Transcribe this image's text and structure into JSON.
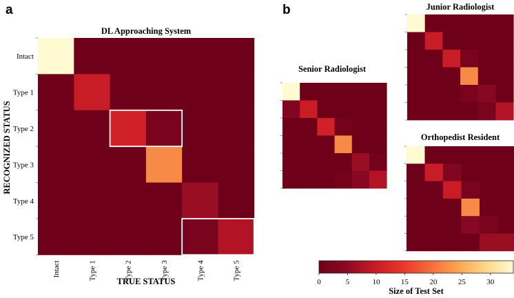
{
  "panel_labels": {
    "a": "a",
    "b": "b"
  },
  "chart_data": [
    {
      "type": "heatmap",
      "id": "dl",
      "title": "DL Approaching System",
      "xlabel": "TRUE STATUS",
      "ylabel": "RECOGNIZED STATUS",
      "x_categories": [
        "Intact",
        "Type 1",
        "Type 2",
        "Type 3",
        "Type 4",
        "Type 5"
      ],
      "y_categories": [
        "Intact",
        "Type 1",
        "Type 2",
        "Type 3",
        "Type 4",
        "Type 5"
      ],
      "values": [
        [
          34,
          0,
          0,
          0,
          0,
          0
        ],
        [
          0,
          10,
          0,
          0,
          0,
          0
        ],
        [
          0,
          0,
          11,
          2,
          0,
          0
        ],
        [
          0,
          0,
          0,
          22,
          0,
          0
        ],
        [
          0,
          0,
          0,
          0,
          6,
          0
        ],
        [
          0,
          0,
          0,
          0,
          2,
          8
        ]
      ],
      "highlight_boxes": [
        {
          "rows": [
            2,
            2
          ],
          "cols": [
            2,
            3
          ]
        },
        {
          "rows": [
            5,
            5
          ],
          "cols": [
            4,
            5
          ]
        }
      ]
    },
    {
      "type": "heatmap",
      "id": "junior",
      "title": "Junior Radiologist",
      "values": [
        [
          34,
          0,
          0,
          0,
          0,
          0
        ],
        [
          0,
          10,
          0,
          0,
          0,
          0
        ],
        [
          0,
          0,
          10,
          2,
          0,
          0
        ],
        [
          0,
          0,
          0,
          22,
          0,
          0
        ],
        [
          0,
          0,
          0,
          2,
          4,
          0
        ],
        [
          0,
          0,
          0,
          0,
          2,
          8
        ]
      ]
    },
    {
      "type": "heatmap",
      "id": "senior",
      "title": "Senior Radiologist",
      "values": [
        [
          34,
          0,
          0,
          0,
          0,
          0
        ],
        [
          3,
          10,
          0,
          0,
          0,
          0
        ],
        [
          0,
          0,
          11,
          1,
          0,
          0
        ],
        [
          0,
          0,
          0,
          22,
          0,
          0
        ],
        [
          0,
          0,
          0,
          0,
          6,
          1
        ],
        [
          0,
          0,
          0,
          1,
          4,
          8
        ]
      ]
    },
    {
      "type": "heatmap",
      "id": "ortho",
      "title": "Orthopedist Resident",
      "values": [
        [
          34,
          0,
          0,
          0,
          0,
          0
        ],
        [
          0,
          10,
          3,
          0,
          0,
          0
        ],
        [
          0,
          0,
          10,
          2,
          0,
          0
        ],
        [
          0,
          0,
          0,
          22,
          0,
          0
        ],
        [
          0,
          0,
          0,
          4,
          2,
          0
        ],
        [
          0,
          0,
          0,
          0,
          6,
          6
        ]
      ]
    },
    {
      "type": "colorbar",
      "id": "colorbar",
      "label": "Size of Test Set",
      "range": [
        0,
        34
      ],
      "ticks": [
        0,
        5,
        10,
        15,
        20,
        25,
        30
      ],
      "colors": [
        "#6e0019",
        "#8c0a24",
        "#c61a26",
        "#e8362a",
        "#f46b3b",
        "#fba551",
        "#fdd78a",
        "#fffad2"
      ]
    }
  ]
}
